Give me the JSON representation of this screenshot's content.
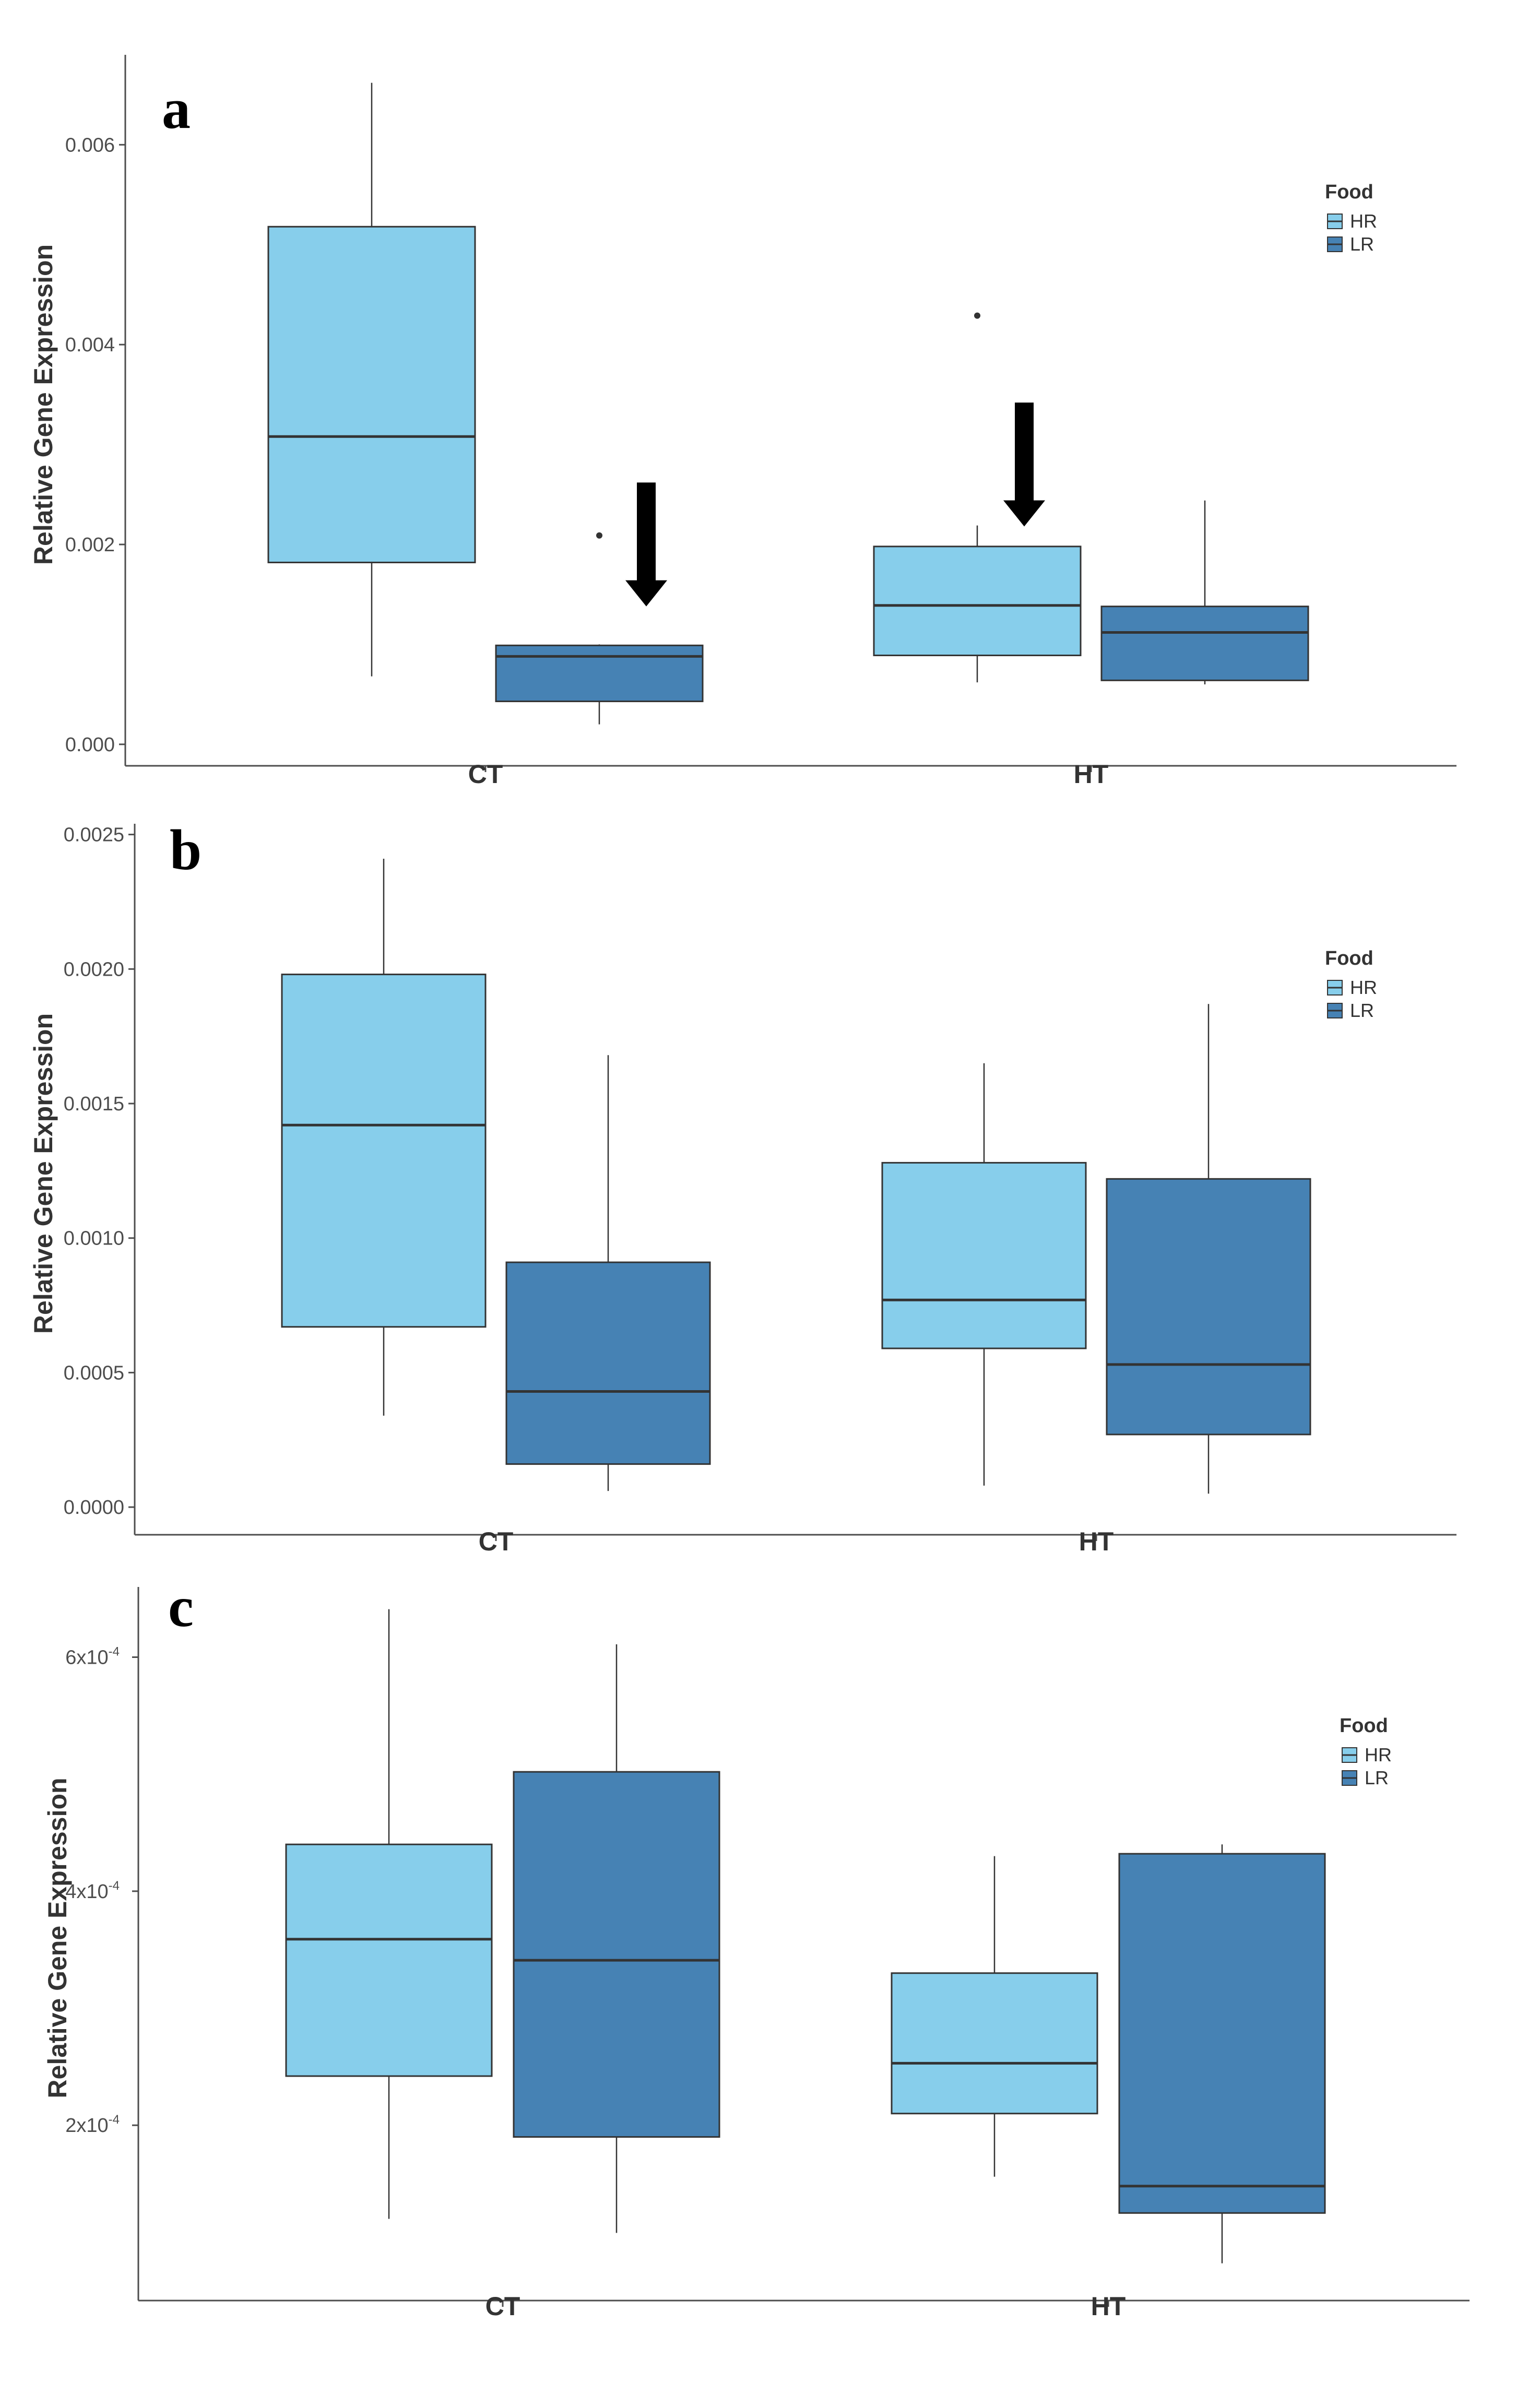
{
  "chart_data": [
    {
      "panel": "a",
      "type": "box",
      "ylabel": "Relative Gene Expression",
      "categories": [
        "CT",
        "HT"
      ],
      "yticks": [
        {
          "value": 0.0,
          "label": "0.000"
        },
        {
          "value": 0.002,
          "label": "0.002"
        },
        {
          "value": 0.004,
          "label": "0.004"
        },
        {
          "value": 0.006,
          "label": "0.006"
        }
      ],
      "ylim": [
        -0.0001,
        0.0069
      ],
      "legend": {
        "title": "Food",
        "position": "right",
        "items": [
          {
            "label": "HR",
            "color": "#87CEEB"
          },
          {
            "label": "LR",
            "color": "#4682B4"
          }
        ]
      },
      "series": [
        {
          "name": "HR",
          "color": "#87CEEB",
          "boxes": [
            {
              "category": "CT",
              "min": 0.00068,
              "q1": 0.00182,
              "median": 0.00308,
              "q3": 0.00518,
              "max": 0.00662,
              "outliers": []
            },
            {
              "category": "HT",
              "min": 0.00062,
              "q1": 0.00089,
              "median": 0.00139,
              "q3": 0.00198,
              "max": 0.00219,
              "outliers": [
                0.00429
              ]
            }
          ]
        },
        {
          "name": "LR",
          "color": "#4682B4",
          "boxes": [
            {
              "category": "CT",
              "min": 0.0002,
              "q1": 0.00043,
              "median": 0.00088,
              "q3": 0.00099,
              "max": 0.001,
              "outliers": [
                0.00209
              ]
            },
            {
              "category": "HT",
              "min": 0.0006,
              "q1": 0.00064,
              "median": 0.00112,
              "q3": 0.00138,
              "max": 0.00244,
              "outliers": []
            }
          ]
        }
      ],
      "annotations": [
        {
          "type": "arrow-down",
          "category": "CT",
          "group": "LR",
          "from": 0.00262,
          "to": 0.00138
        },
        {
          "type": "arrow-down",
          "category": "HT",
          "group": "HR",
          "from": 0.00342,
          "to": 0.00218
        }
      ]
    },
    {
      "panel": "b",
      "type": "box",
      "ylabel": "Relative Gene Expression",
      "categories": [
        "CT",
        "HT"
      ],
      "yticks": [
        {
          "value": 0.0,
          "label": "0.0000"
        },
        {
          "value": 0.0005,
          "label": "0.0005"
        },
        {
          "value": 0.001,
          "label": "0.0010"
        },
        {
          "value": 0.0015,
          "label": "0.0015"
        },
        {
          "value": 0.002,
          "label": "0.0020"
        },
        {
          "value": 0.0025,
          "label": "0.0025"
        }
      ],
      "ylim": [
        -6e-05,
        0.00254
      ],
      "legend": {
        "title": "Food",
        "position": "right",
        "items": [
          {
            "label": "HR",
            "color": "#87CEEB"
          },
          {
            "label": "LR",
            "color": "#4682B4"
          }
        ]
      },
      "series": [
        {
          "name": "HR",
          "color": "#87CEEB",
          "boxes": [
            {
              "category": "CT",
              "min": 0.00034,
              "q1": 0.00067,
              "median": 0.00142,
              "q3": 0.00198,
              "max": 0.00241,
              "outliers": []
            },
            {
              "category": "HT",
              "min": 8e-05,
              "q1": 0.00059,
              "median": 0.00077,
              "q3": 0.00128,
              "max": 0.00165,
              "outliers": []
            }
          ]
        },
        {
          "name": "LR",
          "color": "#4682B4",
          "boxes": [
            {
              "category": "CT",
              "min": 6e-05,
              "q1": 0.00016,
              "median": 0.00043,
              "q3": 0.00091,
              "max": 0.00168,
              "outliers": []
            },
            {
              "category": "HT",
              "min": 5e-05,
              "q1": 0.00027,
              "median": 0.00053,
              "q3": 0.00122,
              "max": 0.00187,
              "outliers": []
            }
          ]
        }
      ],
      "annotations": []
    },
    {
      "panel": "c",
      "type": "box",
      "ylabel": "Relative Gene Expression",
      "categories": [
        "CT",
        "HT"
      ],
      "yticks": [
        {
          "value": 0.0002,
          "label": "2x10",
          "exp": "-4"
        },
        {
          "value": 0.0004,
          "label": "4x10",
          "exp": "-4"
        },
        {
          "value": 0.0006,
          "label": "6x10",
          "exp": "-4"
        }
      ],
      "ylim": [
        6e-05,
        0.00066
      ],
      "legend": {
        "title": "Food",
        "position": "right",
        "items": [
          {
            "label": "HR",
            "color": "#87CEEB"
          },
          {
            "label": "LR",
            "color": "#4682B4"
          }
        ]
      },
      "series": [
        {
          "name": "HR",
          "color": "#87CEEB",
          "boxes": [
            {
              "category": "CT",
              "min": 0.00012,
              "q1": 0.000242,
              "median": 0.000359,
              "q3": 0.00044,
              "max": 0.000641,
              "outliers": []
            },
            {
              "category": "HT",
              "min": 0.000156,
              "q1": 0.00021,
              "median": 0.000253,
              "q3": 0.00033,
              "max": 0.00043,
              "outliers": []
            }
          ]
        },
        {
          "name": "LR",
          "color": "#4682B4",
          "boxes": [
            {
              "category": "CT",
              "min": 0.000108,
              "q1": 0.00019,
              "median": 0.000341,
              "q3": 0.000502,
              "max": 0.000611,
              "outliers": []
            },
            {
              "category": "HT",
              "min": 8.2e-05,
              "q1": 0.000125,
              "median": 0.000148,
              "q3": 0.000432,
              "max": 0.00044,
              "outliers": []
            }
          ]
        }
      ],
      "annotations": []
    }
  ]
}
